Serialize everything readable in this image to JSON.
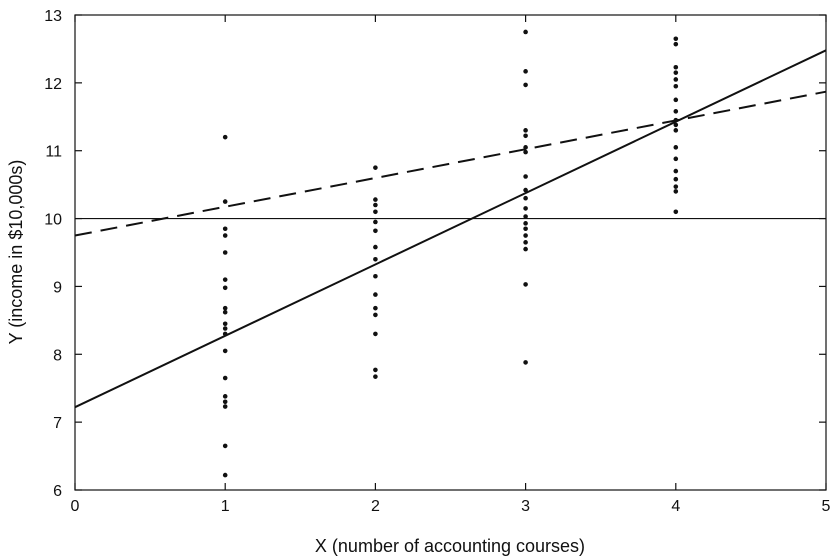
{
  "chart_data": {
    "type": "scatter",
    "title": "",
    "xlabel": "X (number of accounting courses)",
    "ylabel": "Y (income in $10,000s)",
    "xlim": [
      0,
      5
    ],
    "ylim": [
      6,
      13
    ],
    "xticks": [
      "0",
      "1",
      "2",
      "3",
      "4",
      "5"
    ],
    "yticks": [
      "6",
      "7",
      "8",
      "9",
      "10",
      "11",
      "12",
      "13"
    ],
    "grid": false,
    "legend": "none",
    "points": [
      {
        "x": 1,
        "y": 11.2
      },
      {
        "x": 1,
        "y": 10.25
      },
      {
        "x": 1,
        "y": 9.85
      },
      {
        "x": 1,
        "y": 9.75
      },
      {
        "x": 1,
        "y": 9.5
      },
      {
        "x": 1,
        "y": 9.1
      },
      {
        "x": 1,
        "y": 8.98
      },
      {
        "x": 1,
        "y": 8.68
      },
      {
        "x": 1,
        "y": 8.62
      },
      {
        "x": 1,
        "y": 8.45
      },
      {
        "x": 1,
        "y": 8.38
      },
      {
        "x": 1,
        "y": 8.3
      },
      {
        "x": 1,
        "y": 8.05
      },
      {
        "x": 1,
        "y": 7.65
      },
      {
        "x": 1,
        "y": 7.38
      },
      {
        "x": 1,
        "y": 7.3
      },
      {
        "x": 1,
        "y": 7.23
      },
      {
        "x": 1,
        "y": 6.65
      },
      {
        "x": 1,
        "y": 6.22
      },
      {
        "x": 2,
        "y": 10.75
      },
      {
        "x": 2,
        "y": 10.28
      },
      {
        "x": 2,
        "y": 10.2
      },
      {
        "x": 2,
        "y": 10.1
      },
      {
        "x": 2,
        "y": 9.95
      },
      {
        "x": 2,
        "y": 9.82
      },
      {
        "x": 2,
        "y": 9.58
      },
      {
        "x": 2,
        "y": 9.4
      },
      {
        "x": 2,
        "y": 9.15
      },
      {
        "x": 2,
        "y": 8.88
      },
      {
        "x": 2,
        "y": 8.68
      },
      {
        "x": 2,
        "y": 8.58
      },
      {
        "x": 2,
        "y": 8.3
      },
      {
        "x": 2,
        "y": 7.77
      },
      {
        "x": 2,
        "y": 7.67
      },
      {
        "x": 3,
        "y": 12.75
      },
      {
        "x": 3,
        "y": 12.17
      },
      {
        "x": 3,
        "y": 11.97
      },
      {
        "x": 3,
        "y": 11.3
      },
      {
        "x": 3,
        "y": 11.22
      },
      {
        "x": 3,
        "y": 11.05
      },
      {
        "x": 3,
        "y": 10.98
      },
      {
        "x": 3,
        "y": 10.62
      },
      {
        "x": 3,
        "y": 10.42
      },
      {
        "x": 3,
        "y": 10.3
      },
      {
        "x": 3,
        "y": 10.15
      },
      {
        "x": 3,
        "y": 10.03
      },
      {
        "x": 3,
        "y": 9.93
      },
      {
        "x": 3,
        "y": 9.85
      },
      {
        "x": 3,
        "y": 9.75
      },
      {
        "x": 3,
        "y": 9.65
      },
      {
        "x": 3,
        "y": 9.55
      },
      {
        "x": 3,
        "y": 9.03
      },
      {
        "x": 3,
        "y": 7.88
      },
      {
        "x": 4,
        "y": 12.65
      },
      {
        "x": 4,
        "y": 12.57
      },
      {
        "x": 4,
        "y": 12.23
      },
      {
        "x": 4,
        "y": 12.15
      },
      {
        "x": 4,
        "y": 12.05
      },
      {
        "x": 4,
        "y": 11.95
      },
      {
        "x": 4,
        "y": 11.75
      },
      {
        "x": 4,
        "y": 11.58
      },
      {
        "x": 4,
        "y": 11.45
      },
      {
        "x": 4,
        "y": 11.38
      },
      {
        "x": 4,
        "y": 11.3
      },
      {
        "x": 4,
        "y": 11.05
      },
      {
        "x": 4,
        "y": 10.88
      },
      {
        "x": 4,
        "y": 10.7
      },
      {
        "x": 4,
        "y": 10.58
      },
      {
        "x": 4,
        "y": 10.47
      },
      {
        "x": 4,
        "y": 10.4
      },
      {
        "x": 4,
        "y": 10.1
      }
    ],
    "lines": [
      {
        "style": "solid",
        "x": [
          0,
          5
        ],
        "y": [
          7.22,
          12.48
        ]
      },
      {
        "style": "dashed",
        "x": [
          0,
          5
        ],
        "y": [
          9.75,
          11.87
        ]
      },
      {
        "style": "solid-thin",
        "x": [
          0,
          5
        ],
        "y": [
          10,
          10
        ]
      }
    ]
  }
}
